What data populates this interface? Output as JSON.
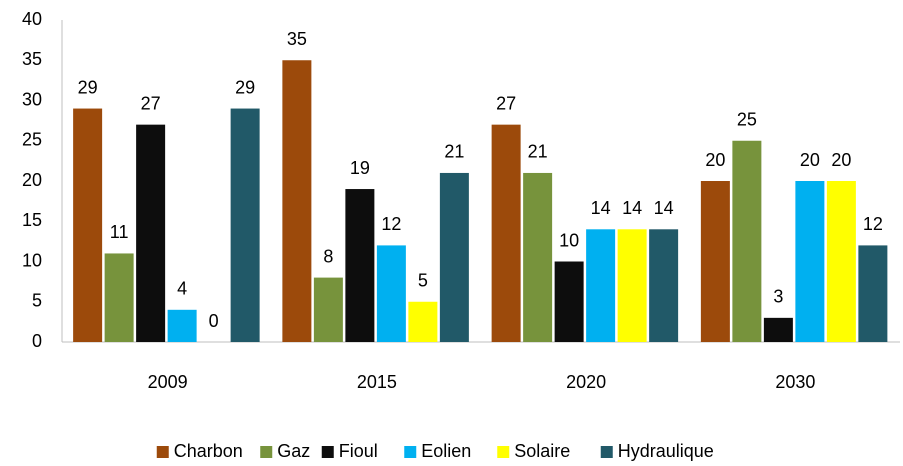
{
  "chart_data": {
    "type": "bar",
    "categories": [
      "2009",
      "2015",
      "2020",
      "2030"
    ],
    "series": [
      {
        "name": "Charbon",
        "color": "#9c4a0b",
        "values": [
          29,
          35,
          27,
          20
        ]
      },
      {
        "name": "Gaz",
        "color": "#77933c",
        "values": [
          11,
          8,
          21,
          25
        ]
      },
      {
        "name": "Fioul",
        "color": "#0d0d0d",
        "values": [
          27,
          19,
          10,
          3
        ]
      },
      {
        "name": "Eolien",
        "color": "#00b0f0",
        "values": [
          4,
          12,
          14,
          20
        ]
      },
      {
        "name": "Solaire",
        "color": "#ffff00",
        "values": [
          0,
          5,
          14,
          20
        ]
      },
      {
        "name": "Hydraulique",
        "color": "#215968",
        "values": [
          29,
          21,
          14,
          12
        ]
      }
    ],
    "ylim": [
      0,
      40
    ],
    "yticks": [
      0,
      5,
      10,
      15,
      20,
      25,
      30,
      35,
      40
    ],
    "grid": false,
    "legend": "bottom",
    "data_labels": true
  }
}
